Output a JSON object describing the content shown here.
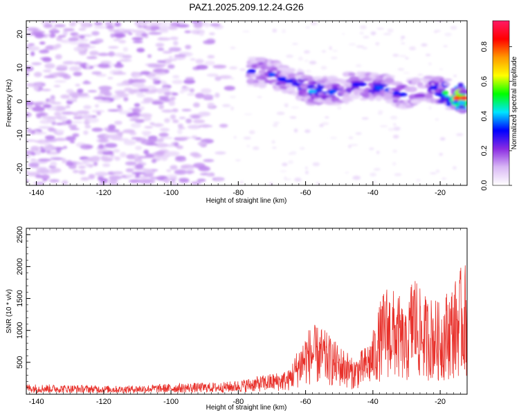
{
  "title": "PAZ1.2025.209.12.24.G26",
  "chart_data": [
    {
      "type": "heatmap",
      "xlabel": "Height of straight line (km)",
      "ylabel": "Frequency (Hz)",
      "xlim": [
        -143,
        -12
      ],
      "ylim": [
        -25,
        24
      ],
      "x_ticks": [
        -140,
        -120,
        -100,
        -80,
        -60,
        -40,
        -20
      ],
      "y_ticks": [
        -20,
        -10,
        0,
        10,
        20
      ],
      "colorbar": {
        "label": "Normalized spectral amplitude",
        "range": [
          0,
          0.95
        ],
        "ticks": [
          0,
          0.2,
          0.4,
          0.6,
          0.8
        ],
        "colors": [
          "#ffffff",
          "#d9b8f5",
          "#8a2be2",
          "#0000ff",
          "#00e5ff",
          "#00ff00",
          "#ffff00",
          "#ff9900",
          "#ff0000",
          "#ff1a66"
        ]
      },
      "description_points": [
        {
          "x": -76,
          "y": 9,
          "v": 0.3
        },
        {
          "x": -70,
          "y": 8,
          "v": 0.35
        },
        {
          "x": -65,
          "y": 6,
          "v": 0.3
        },
        {
          "x": -58,
          "y": 3,
          "v": 0.4
        },
        {
          "x": -52,
          "y": 3,
          "v": 0.35
        },
        {
          "x": -45,
          "y": 5,
          "v": 0.3
        },
        {
          "x": -38,
          "y": 4,
          "v": 0.35
        },
        {
          "x": -31,
          "y": 2,
          "v": 0.3
        },
        {
          "x": -22,
          "y": 4,
          "v": 0.3
        },
        {
          "x": -15,
          "y": 1,
          "v": 0.8
        },
        {
          "x": -13,
          "y": 1,
          "v": 0.9
        }
      ]
    },
    {
      "type": "line",
      "xlabel": "Height of straight line (km)",
      "ylabel": "SNR (10 * v/v)",
      "xlim": [
        -143,
        -12
      ],
      "ylim": [
        0,
        2600
      ],
      "x_ticks": [
        -140,
        -120,
        -100,
        -80,
        -60,
        -40,
        -20
      ],
      "y_ticks": [
        500,
        1000,
        1500,
        2000,
        2500
      ],
      "color": "#e8302a",
      "series": [
        {
          "x": [
            -143,
            -135,
            -125,
            -115,
            -105,
            -95,
            -85,
            -80,
            -76,
            -72,
            -68,
            -65,
            -62,
            -60,
            -58,
            -55,
            -52,
            -50,
            -48,
            -46,
            -44,
            -42,
            -40,
            -38,
            -36,
            -34,
            -32,
            -30,
            -28,
            -26,
            -24,
            -22,
            -20,
            -18,
            -16,
            -14,
            -12
          ],
          "y": [
            150,
            140,
            130,
            120,
            140,
            160,
            170,
            200,
            240,
            280,
            320,
            350,
            700,
            900,
            1000,
            950,
            800,
            700,
            650,
            500,
            600,
            700,
            900,
            1300,
            1600,
            1500,
            1400,
            1100,
            1900,
            1500,
            1400,
            1400,
            1300,
            1500,
            1600,
            1800,
            1900
          ]
        }
      ]
    }
  ]
}
